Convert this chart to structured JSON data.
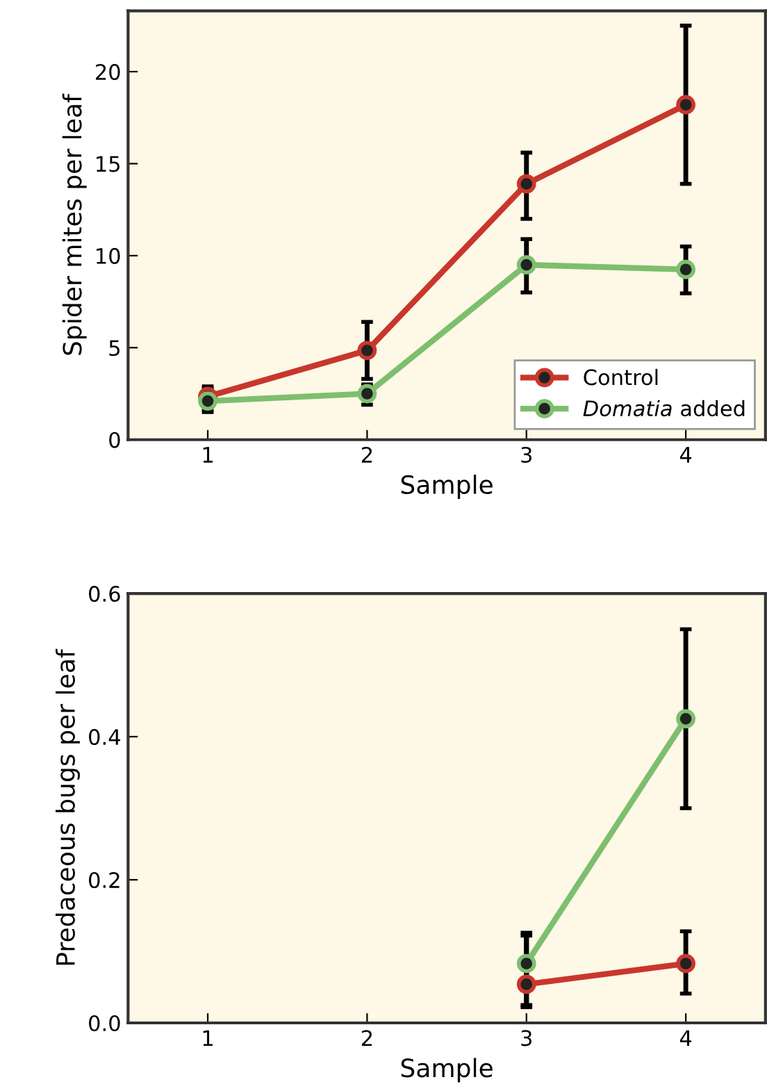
{
  "chart_data": [
    {
      "type": "line",
      "xlabel": "Sample",
      "ylabel": "Spider mites per leaf",
      "x": [
        1,
        2,
        3,
        4
      ],
      "xlim": [
        0.5,
        4.5
      ],
      "xticks": [
        1,
        2,
        3,
        4
      ],
      "ylim": [
        0,
        23.3
      ],
      "yticks": [
        0,
        5,
        10,
        15,
        20
      ],
      "marker": "circle",
      "legend": "bottom right",
      "grid": false,
      "series": [
        {
          "name": "Control",
          "color": "#c8372d",
          "values": [
            2.35,
            4.85,
            13.9,
            18.2
          ],
          "errors": [
            [
              1.6,
              2.9
            ],
            [
              3.3,
              6.4
            ],
            [
              12.0,
              15.6
            ],
            [
              13.9,
              22.5
            ]
          ]
        },
        {
          "name": "Domatia added",
          "color": "#7dbf6e",
          "values": [
            2.1,
            2.5,
            9.5,
            9.25
          ],
          "errors": [
            [
              1.5,
              2.8
            ],
            [
              1.9,
              3.0
            ],
            [
              8.0,
              10.9
            ],
            [
              7.95,
              10.5
            ]
          ]
        }
      ]
    },
    {
      "type": "line",
      "xlabel": "Sample",
      "ylabel": "Predaceous bugs per leaf",
      "x": [
        3,
        4
      ],
      "xlim": [
        0.5,
        4.5
      ],
      "xticks": [
        1,
        2,
        3,
        4
      ],
      "ylim": [
        0,
        0.6
      ],
      "yticks": [
        {
          "value": 0,
          "label": "0.0"
        },
        0.2,
        0.4,
        0.6
      ],
      "marker": "circle",
      "legend": false,
      "grid": false,
      "series": [
        {
          "color": "#c8372d",
          "values": [
            0.054,
            0.083
          ],
          "errors": [
            [
              0.025,
              0.122
            ],
            [
              0.041,
              0.128
            ]
          ]
        },
        {
          "color": "#7dbf6e",
          "values": [
            0.083,
            0.425
          ],
          "errors": [
            [
              0.022,
              0.126
            ],
            [
              0.3,
              0.55
            ]
          ]
        }
      ]
    }
  ]
}
